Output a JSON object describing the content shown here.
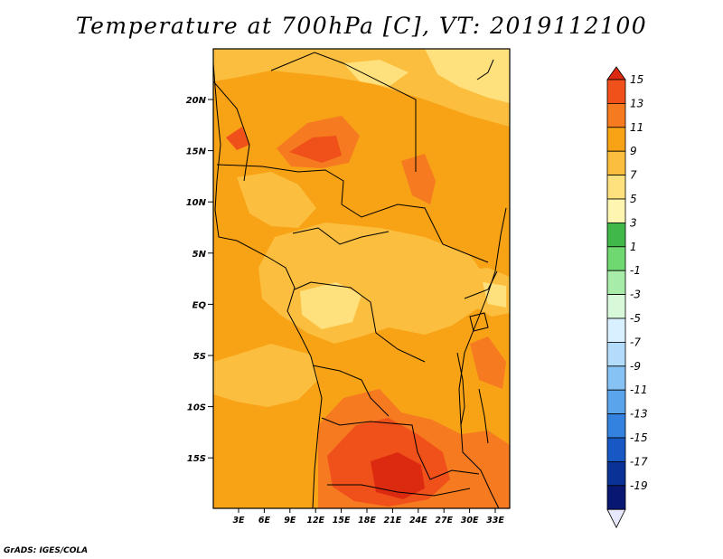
{
  "title": "Temperature at 700hPa [C], VT: 2019112100",
  "credit": "GrADS: IGES/COLA",
  "map": {
    "lat_ticks": [
      "20N",
      "15N",
      "10N",
      "5N",
      "EQ",
      "5S",
      "10S",
      "15S"
    ],
    "lon_ticks": [
      "3E",
      "6E",
      "9E",
      "12E",
      "15E",
      "18E",
      "21E",
      "24E",
      "27E",
      "30E",
      "33E"
    ]
  },
  "colorbar": {
    "labels": [
      "15",
      "13",
      "11",
      "9",
      "7",
      "5",
      "3",
      "1",
      "-1",
      "-3",
      "-5",
      "-7",
      "-9",
      "-11",
      "-13",
      "-15",
      "-17",
      "-19"
    ],
    "colors": [
      "#dc2a10",
      "#f0501a",
      "#f57a20",
      "#f8a216",
      "#fcbe3e",
      "#fee07c",
      "#fdf5b0",
      "#40b84a",
      "#70d870",
      "#a8ecaa",
      "#d8f8da",
      "#d8f0ff",
      "#b2dcfa",
      "#86c2f4",
      "#5aa4ec",
      "#3482e0",
      "#1858c4",
      "#0a3296",
      "#081872",
      "#e8e8fc"
    ]
  }
}
